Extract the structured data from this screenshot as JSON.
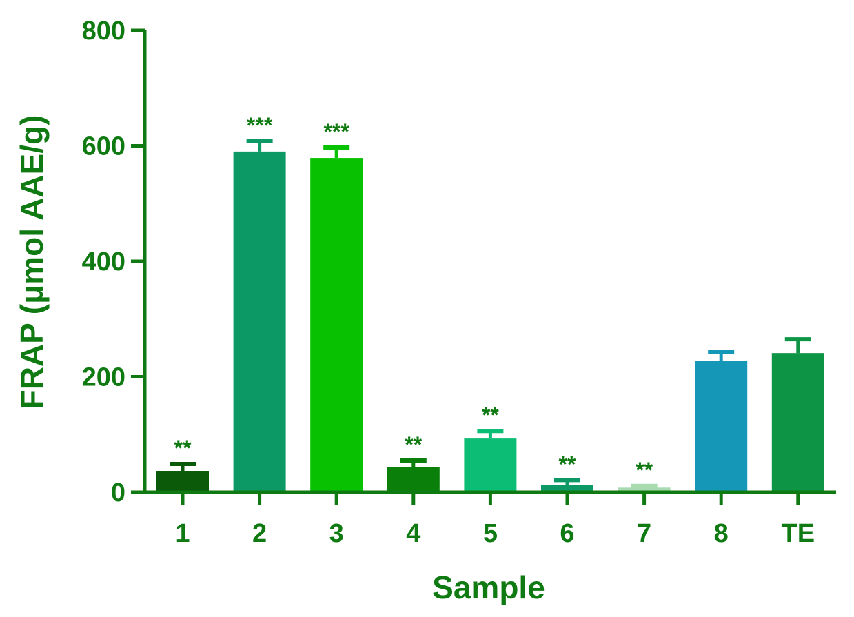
{
  "chart_data": {
    "type": "bar",
    "categories": [
      "1",
      "2",
      "3",
      "4",
      "5",
      "6",
      "7",
      "8",
      "TE"
    ],
    "values": [
      37,
      590,
      579,
      43,
      93,
      12,
      8,
      228,
      241
    ],
    "errors": [
      12,
      18,
      18,
      12,
      13,
      9,
      3,
      15,
      24
    ],
    "significance": [
      "**",
      "***",
      "***",
      "**",
      "**",
      "**",
      "**",
      "",
      ""
    ],
    "colors": [
      "#0a5a0a",
      "#0c9966",
      "#08c100",
      "#0a800a",
      "#0bbd75",
      "#0c9966",
      "#a8dcb0",
      "#1597b8",
      "#0d9444"
    ],
    "xlabel": "Sample",
    "ylabel": "FRAP (μmol AAE/g)",
    "ylim": [
      0,
      800
    ],
    "yticks": [
      0,
      200,
      400,
      600,
      800
    ],
    "axis_color": "#0f7a12",
    "grid": false,
    "legend": "none"
  }
}
